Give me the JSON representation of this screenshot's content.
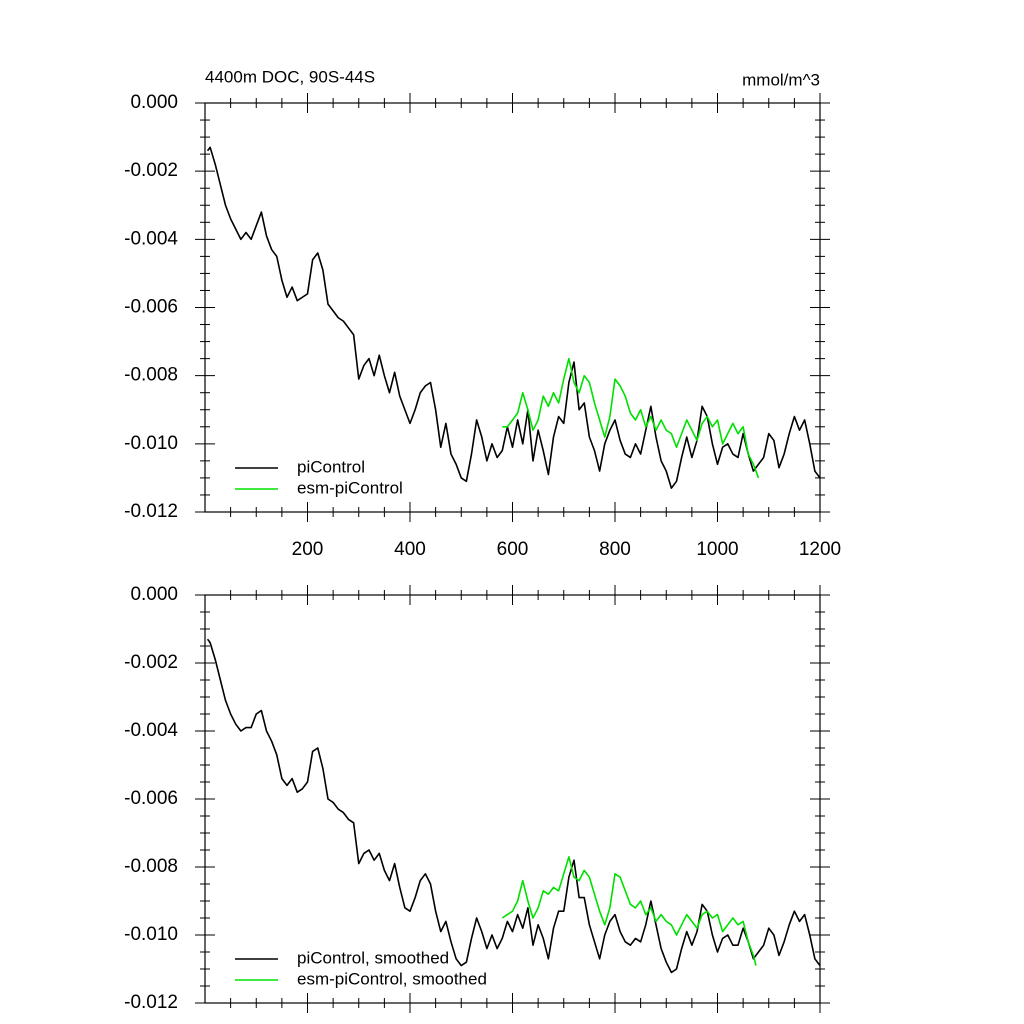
{
  "chart_data": [
    {
      "type": "line",
      "title": "4400m DOC, 90S-44S",
      "units": "mmol/m^3",
      "xlim": [
        0,
        1200
      ],
      "xticks": [
        200,
        400,
        600,
        800,
        1000,
        1200
      ],
      "x_tick_labels": true,
      "ylim": [
        -0.012,
        0
      ],
      "yticks": [
        {
          "value": 0,
          "label": "0.000"
        },
        {
          "value": -0.002,
          "label": "-0.002"
        },
        {
          "value": -0.004,
          "label": "-0.004"
        },
        {
          "value": -0.006,
          "label": "-0.006"
        },
        {
          "value": -0.008,
          "label": "-0.008"
        },
        {
          "value": -0.01,
          "label": "-0.010"
        },
        {
          "value": -0.012,
          "label": "-0.012"
        }
      ],
      "legend": "lower left",
      "series": [
        {
          "name": "piControl",
          "color": "#000000",
          "x": [
            5,
            10,
            20,
            30,
            40,
            50,
            60,
            70,
            80,
            90,
            100,
            110,
            120,
            130,
            140,
            150,
            160,
            170,
            180,
            190,
            200,
            210,
            220,
            230,
            240,
            250,
            260,
            270,
            280,
            290,
            300,
            310,
            320,
            330,
            340,
            350,
            360,
            370,
            380,
            390,
            400,
            410,
            420,
            430,
            440,
            450,
            460,
            470,
            480,
            490,
            500,
            510,
            520,
            530,
            540,
            550,
            560,
            570,
            580,
            590,
            600,
            610,
            620,
            630,
            640,
            650,
            660,
            670,
            680,
            690,
            700,
            710,
            720,
            730,
            740,
            750,
            760,
            770,
            780,
            790,
            800,
            810,
            820,
            830,
            840,
            850,
            860,
            870,
            880,
            890,
            900,
            910,
            920,
            930,
            940,
            950,
            960,
            970,
            980,
            990,
            1000,
            1010,
            1020,
            1030,
            1040,
            1050,
            1060,
            1070,
            1080,
            1090,
            1100,
            1110,
            1120,
            1130,
            1140,
            1150,
            1160,
            1170,
            1180,
            1190,
            1200
          ],
          "values": [
            -0.0014,
            -0.0013,
            -0.0018,
            -0.0024,
            -0.003,
            -0.0034,
            -0.0037,
            -0.004,
            -0.0038,
            -0.004,
            -0.0036,
            -0.0032,
            -0.0039,
            -0.0043,
            -0.0045,
            -0.0052,
            -0.0057,
            -0.0054,
            -0.0058,
            -0.0057,
            -0.0056,
            -0.0046,
            -0.0044,
            -0.0049,
            -0.0059,
            -0.0061,
            -0.0063,
            -0.0064,
            -0.0066,
            -0.0068,
            -0.0081,
            -0.0077,
            -0.0075,
            -0.008,
            -0.0074,
            -0.008,
            -0.0085,
            -0.0079,
            -0.0086,
            -0.009,
            -0.0094,
            -0.009,
            -0.0085,
            -0.0083,
            -0.0082,
            -0.009,
            -0.0101,
            -0.0094,
            -0.0103,
            -0.0106,
            -0.011,
            -0.0111,
            -0.0103,
            -0.0093,
            -0.0098,
            -0.0105,
            -0.01,
            -0.0104,
            -0.0102,
            -0.0095,
            -0.0101,
            -0.0093,
            -0.01,
            -0.009,
            -0.0105,
            -0.0096,
            -0.0102,
            -0.0109,
            -0.0098,
            -0.0092,
            -0.0094,
            -0.0082,
            -0.0076,
            -0.009,
            -0.0088,
            -0.0098,
            -0.0102,
            -0.0108,
            -0.01,
            -0.0096,
            -0.0093,
            -0.0099,
            -0.0103,
            -0.0104,
            -0.01,
            -0.0103,
            -0.0096,
            -0.0089,
            -0.0098,
            -0.0105,
            -0.0108,
            -0.0113,
            -0.0111,
            -0.0104,
            -0.0098,
            -0.0104,
            -0.0099,
            -0.0089,
            -0.0092,
            -0.01,
            -0.0106,
            -0.0101,
            -0.01,
            -0.0103,
            -0.0104,
            -0.0097,
            -0.0103,
            -0.0108,
            -0.0106,
            -0.0104,
            -0.0097,
            -0.0099,
            -0.0107,
            -0.0103,
            -0.0097,
            -0.0092,
            -0.0096,
            -0.0093,
            -0.01,
            -0.0108,
            -0.011
          ]
        },
        {
          "name": "esm-piControl",
          "color": "#00e000",
          "x": [
            580,
            590,
            600,
            610,
            620,
            630,
            640,
            650,
            660,
            670,
            680,
            690,
            700,
            710,
            720,
            730,
            740,
            750,
            760,
            770,
            780,
            790,
            800,
            810,
            820,
            830,
            840,
            850,
            860,
            870,
            880,
            890,
            900,
            910,
            920,
            930,
            940,
            950,
            960,
            970,
            980,
            990,
            1000,
            1010,
            1020,
            1030,
            1040,
            1050,
            1060,
            1070,
            1080
          ],
          "values": [
            -0.0095,
            -0.0095,
            -0.0093,
            -0.0091,
            -0.0085,
            -0.009,
            -0.0096,
            -0.0093,
            -0.0086,
            -0.0089,
            -0.0085,
            -0.0088,
            -0.0081,
            -0.0075,
            -0.0082,
            -0.0085,
            -0.008,
            -0.0082,
            -0.0088,
            -0.0093,
            -0.0098,
            -0.0092,
            -0.0081,
            -0.0083,
            -0.0086,
            -0.0091,
            -0.0093,
            -0.009,
            -0.0095,
            -0.0092,
            -0.0096,
            -0.0093,
            -0.0096,
            -0.0097,
            -0.0101,
            -0.0097,
            -0.0093,
            -0.0096,
            -0.0099,
            -0.0094,
            -0.0092,
            -0.0095,
            -0.0093,
            -0.01,
            -0.0097,
            -0.0094,
            -0.0097,
            -0.0095,
            -0.0103,
            -0.0106,
            -0.011
          ]
        }
      ]
    },
    {
      "type": "line",
      "xlim": [
        0,
        1200
      ],
      "xticks": [
        200,
        400,
        600,
        800,
        1000,
        1200
      ],
      "x_tick_labels": false,
      "ylim": [
        -0.012,
        0
      ],
      "yticks": [
        {
          "value": 0,
          "label": "0.000"
        },
        {
          "value": -0.002,
          "label": "-0.002"
        },
        {
          "value": -0.004,
          "label": "-0.004"
        },
        {
          "value": -0.006,
          "label": "-0.006"
        },
        {
          "value": -0.008,
          "label": "-0.008"
        },
        {
          "value": -0.01,
          "label": "-0.010"
        },
        {
          "value": -0.012,
          "label": "-0.012"
        }
      ],
      "legend": "lower left",
      "series": [
        {
          "name": "piControl, smoothed",
          "color": "#000000",
          "x": [
            5,
            10,
            20,
            30,
            40,
            50,
            60,
            70,
            80,
            90,
            100,
            110,
            120,
            130,
            140,
            150,
            160,
            170,
            180,
            190,
            200,
            210,
            220,
            230,
            240,
            250,
            260,
            270,
            280,
            290,
            300,
            310,
            320,
            330,
            340,
            350,
            360,
            370,
            380,
            390,
            400,
            410,
            420,
            430,
            440,
            450,
            460,
            470,
            480,
            490,
            500,
            510,
            520,
            530,
            540,
            550,
            560,
            570,
            580,
            590,
            600,
            610,
            620,
            630,
            640,
            650,
            660,
            670,
            680,
            690,
            700,
            710,
            720,
            730,
            740,
            750,
            760,
            770,
            780,
            790,
            800,
            810,
            820,
            830,
            840,
            850,
            860,
            870,
            880,
            890,
            900,
            910,
            920,
            930,
            940,
            950,
            960,
            970,
            980,
            990,
            1000,
            1010,
            1020,
            1030,
            1040,
            1050,
            1060,
            1070,
            1080,
            1090,
            1100,
            1110,
            1120,
            1130,
            1140,
            1150,
            1160,
            1170,
            1180,
            1190,
            1200
          ],
          "values": [
            -0.0013,
            -0.0014,
            -0.0019,
            -0.0025,
            -0.0031,
            -0.0035,
            -0.0038,
            -0.004,
            -0.0039,
            -0.0039,
            -0.0035,
            -0.0034,
            -0.004,
            -0.0043,
            -0.0047,
            -0.0054,
            -0.0056,
            -0.0054,
            -0.0058,
            -0.0057,
            -0.0055,
            -0.0046,
            -0.0045,
            -0.0051,
            -0.006,
            -0.0061,
            -0.0063,
            -0.0064,
            -0.0066,
            -0.0067,
            -0.0079,
            -0.0076,
            -0.0075,
            -0.0078,
            -0.0076,
            -0.0081,
            -0.0084,
            -0.0079,
            -0.0086,
            -0.0092,
            -0.0093,
            -0.0089,
            -0.0084,
            -0.0082,
            -0.0085,
            -0.0093,
            -0.0099,
            -0.0096,
            -0.0102,
            -0.0107,
            -0.0109,
            -0.0108,
            -0.0101,
            -0.0095,
            -0.0099,
            -0.0104,
            -0.01,
            -0.0104,
            -0.0101,
            -0.0096,
            -0.0099,
            -0.0094,
            -0.0098,
            -0.0092,
            -0.0103,
            -0.0097,
            -0.0101,
            -0.0107,
            -0.0098,
            -0.0093,
            -0.0093,
            -0.0083,
            -0.0078,
            -0.0089,
            -0.0089,
            -0.0097,
            -0.0102,
            -0.0107,
            -0.01,
            -0.0096,
            -0.0094,
            -0.0099,
            -0.0102,
            -0.0103,
            -0.0101,
            -0.0102,
            -0.0097,
            -0.009,
            -0.0097,
            -0.0104,
            -0.0108,
            -0.0111,
            -0.011,
            -0.0104,
            -0.0099,
            -0.0103,
            -0.0099,
            -0.0091,
            -0.0093,
            -0.01,
            -0.0105,
            -0.0101,
            -0.01,
            -0.0103,
            -0.0103,
            -0.0098,
            -0.0102,
            -0.0107,
            -0.0105,
            -0.0103,
            -0.0098,
            -0.01,
            -0.0106,
            -0.0102,
            -0.0097,
            -0.0093,
            -0.0096,
            -0.0094,
            -0.01,
            -0.0107,
            -0.0109
          ]
        },
        {
          "name": "esm-piControl, smoothed",
          "color": "#00e000",
          "x": [
            580,
            590,
            600,
            610,
            620,
            630,
            640,
            650,
            660,
            670,
            680,
            690,
            700,
            710,
            720,
            730,
            740,
            750,
            760,
            770,
            780,
            790,
            800,
            810,
            820,
            830,
            840,
            850,
            860,
            870,
            880,
            890,
            900,
            910,
            920,
            930,
            940,
            950,
            960,
            970,
            980,
            990,
            1000,
            1010,
            1020,
            1030,
            1040,
            1050,
            1060,
            1070,
            1075
          ],
          "values": [
            -0.0095,
            -0.0094,
            -0.0093,
            -0.009,
            -0.0084,
            -0.009,
            -0.0095,
            -0.0092,
            -0.0087,
            -0.0088,
            -0.0086,
            -0.0087,
            -0.0082,
            -0.0077,
            -0.0083,
            -0.0084,
            -0.0081,
            -0.0083,
            -0.0088,
            -0.0093,
            -0.0097,
            -0.0092,
            -0.0082,
            -0.0083,
            -0.0087,
            -0.0091,
            -0.0092,
            -0.009,
            -0.0094,
            -0.0092,
            -0.0096,
            -0.0094,
            -0.0096,
            -0.0097,
            -0.01,
            -0.0097,
            -0.0094,
            -0.0096,
            -0.0098,
            -0.0094,
            -0.0093,
            -0.0095,
            -0.0094,
            -0.0099,
            -0.0097,
            -0.0095,
            -0.0097,
            -0.0096,
            -0.0102,
            -0.0106,
            -0.0109
          ]
        }
      ]
    }
  ]
}
